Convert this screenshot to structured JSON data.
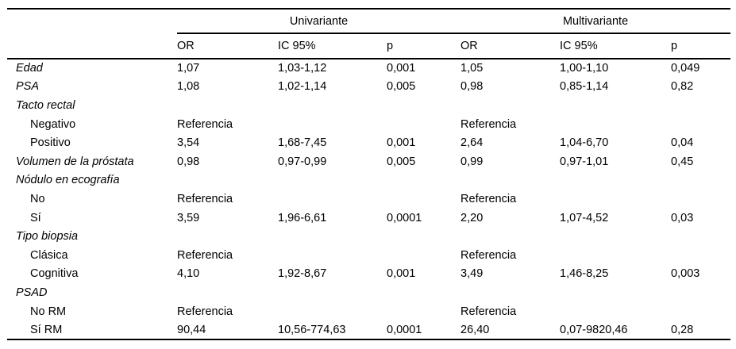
{
  "table": {
    "groups": [
      {
        "label": "Univariante"
      },
      {
        "label": "Multivariante"
      }
    ],
    "sub_headers": [
      "OR",
      "IC 95%",
      "p",
      "OR",
      "IC 95%",
      "p"
    ],
    "rows": [
      {
        "label": "Edad",
        "italic": true,
        "indent": false,
        "cells": [
          "1,07",
          "1,03-1,12",
          "0,001",
          "1,05",
          "1,00-1,10",
          "0,049"
        ]
      },
      {
        "label": "PSA",
        "italic": true,
        "indent": false,
        "cells": [
          "1,08",
          "1,02-1,14",
          "0,005",
          "0,98",
          "0,85-1,14",
          "0,82"
        ]
      },
      {
        "label": "Tacto rectal",
        "italic": true,
        "indent": false,
        "cells": [
          "",
          "",
          "",
          "",
          "",
          ""
        ]
      },
      {
        "label": "Negativo",
        "italic": false,
        "indent": true,
        "cells": [
          "Referencia",
          "",
          "",
          "Referencia",
          "",
          ""
        ]
      },
      {
        "label": "Positivo",
        "italic": false,
        "indent": true,
        "cells": [
          "3,54",
          "1,68-7,45",
          "0,001",
          "2,64",
          "1,04-6,70",
          "0,04"
        ]
      },
      {
        "label": "Volumen de la próstata",
        "italic": true,
        "indent": false,
        "cells": [
          "0,98",
          "0,97-0,99",
          "0,005",
          "0,99",
          "0,97-1,01",
          "0,45"
        ]
      },
      {
        "label": "Nódulo en ecografía",
        "italic": true,
        "indent": false,
        "cells": [
          "",
          "",
          "",
          "",
          "",
          ""
        ]
      },
      {
        "label": "No",
        "italic": false,
        "indent": true,
        "cells": [
          "Referencia",
          "",
          "",
          "Referencia",
          "",
          ""
        ]
      },
      {
        "label": "Sí",
        "italic": false,
        "indent": true,
        "cells": [
          "3,59",
          "1,96-6,61",
          "0,0001",
          "2,20",
          "1,07-4,52",
          "0,03"
        ]
      },
      {
        "label": "Tipo biopsia",
        "italic": true,
        "indent": false,
        "cells": [
          "",
          "",
          "",
          "",
          "",
          ""
        ]
      },
      {
        "label": "Clásica",
        "italic": false,
        "indent": true,
        "cells": [
          "Referencia",
          "",
          "",
          "Referencia",
          "",
          ""
        ]
      },
      {
        "label": "Cognitiva",
        "italic": false,
        "indent": true,
        "cells": [
          "4,10",
          "1,92-8,67",
          "0,001",
          "3,49",
          "1,46-8,25",
          "0,003"
        ]
      },
      {
        "label": "PSAD",
        "italic": true,
        "indent": false,
        "cells": [
          "",
          "",
          "",
          "",
          "",
          ""
        ]
      },
      {
        "label": "No RM",
        "italic": false,
        "indent": true,
        "cells": [
          "Referencia",
          "",
          "",
          "Referencia",
          "",
          ""
        ]
      },
      {
        "label": "Sí RM",
        "italic": false,
        "indent": true,
        "cells": [
          "90,44",
          "10,56-774,63",
          "0,0001",
          "26,40",
          "0,07-9820,46",
          "0,28"
        ]
      }
    ],
    "column_keys": [
      "or-univariante",
      "ic95-univariante",
      "p-univariante",
      "or-multivariante",
      "ic95-multivariante",
      "p-multivariante"
    ]
  }
}
